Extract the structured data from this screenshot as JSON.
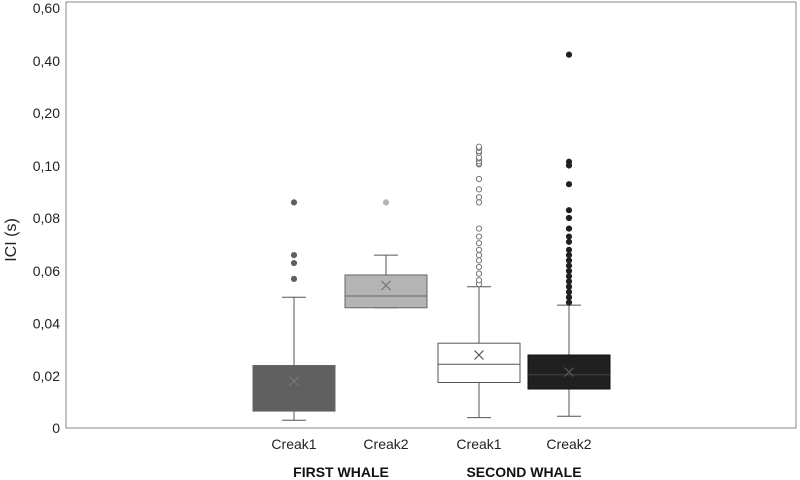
{
  "chart_data": {
    "type": "box",
    "ylabel": "ICI (s)",
    "y_ticks": [
      "0",
      "0,02",
      "0,04",
      "0,06",
      "0,08",
      "0,10",
      "0,20",
      "0,40",
      "0,60"
    ],
    "y_scale": "piecewise: linear 0–0.10 (every 0,02), compressed 0.10–0.60",
    "grid": false,
    "groups": [
      {
        "label": "FIRST WHALE",
        "categories": [
          "Creak1",
          "Creak2"
        ]
      },
      {
        "label": "SECOND WHALE",
        "categories": [
          "Creak1",
          "Creak2"
        ]
      }
    ],
    "series": [
      {
        "group": "FIRST WHALE",
        "category": "Creak1",
        "color": "#606060",
        "whisker_low": 0.003,
        "q1": 0.0065,
        "median": 0.0095,
        "q3": 0.024,
        "whisker_high": 0.05,
        "mean": 0.018,
        "outliers": [
          0.057,
          0.063,
          0.066,
          0.086
        ]
      },
      {
        "group": "FIRST WHALE",
        "category": "Creak2",
        "color": "#b4b4b4",
        "whisker_low": 0.046,
        "q1": 0.046,
        "median": 0.0505,
        "q3": 0.0585,
        "whisker_high": 0.066,
        "mean": 0.0545,
        "outliers": [
          0.086
        ]
      },
      {
        "group": "SECOND WHALE",
        "category": "Creak1",
        "color": "#ffffff",
        "whisker_low": 0.004,
        "q1": 0.0175,
        "median": 0.0245,
        "q3": 0.0325,
        "whisker_high": 0.054,
        "mean": 0.028,
        "outliers": [
          0.055,
          0.0565,
          0.059,
          0.0615,
          0.064,
          0.066,
          0.068,
          0.0705,
          0.073,
          0.076,
          0.086,
          0.088,
          0.091,
          0.095,
          0.103,
          0.105,
          0.109,
          0.114,
          0.116,
          0.125,
          0.128,
          0.134,
          0.1363
        ]
      },
      {
        "group": "SECOND WHALE",
        "category": "Creak2",
        "color": "#202020",
        "whisker_low": 0.0045,
        "q1": 0.015,
        "median": 0.0205,
        "q3": 0.028,
        "whisker_high": 0.047,
        "mean": 0.0215,
        "outliers": [
          0.048,
          0.05,
          0.052,
          0.054,
          0.056,
          0.058,
          0.06,
          0.062,
          0.064,
          0.066,
          0.068,
          0.071,
          0.073,
          0.076,
          0.08,
          0.083,
          0.093,
          0.101,
          0.108,
          0.424
        ]
      }
    ]
  }
}
